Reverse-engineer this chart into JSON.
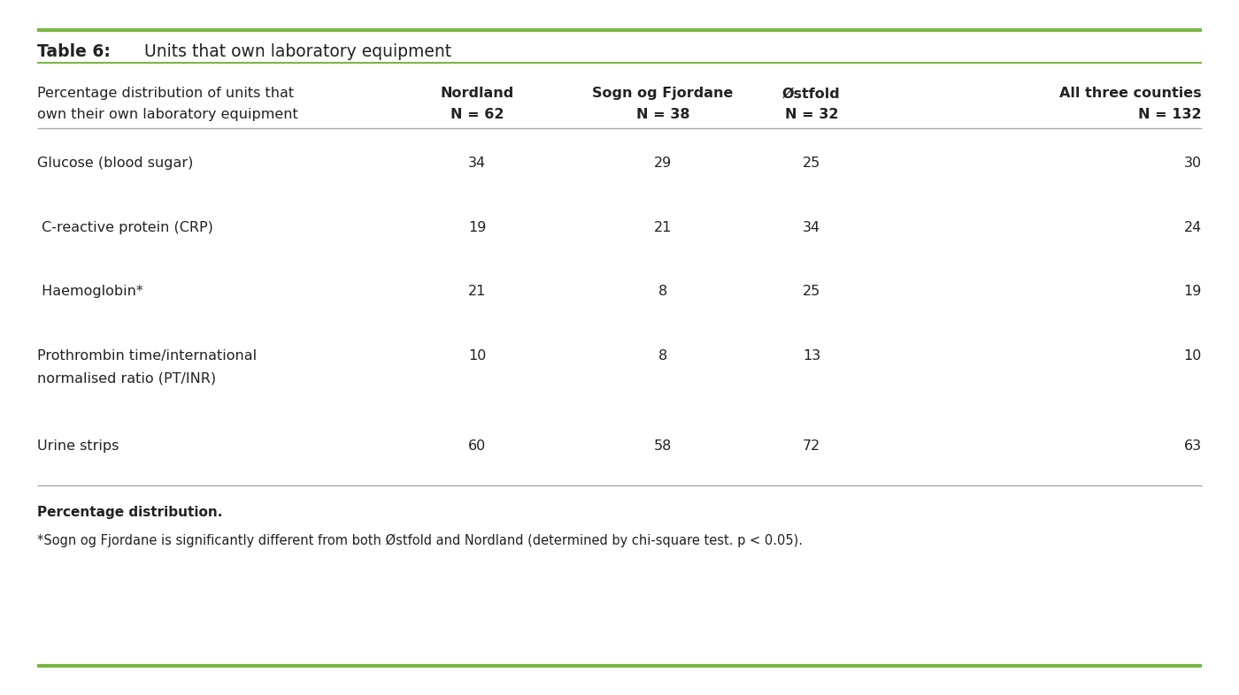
{
  "title_bold": "Table 6:",
  "title_rest": " Units that own laboratory equipment",
  "background_color": "#ffffff",
  "accent_color": "#7ab648",
  "col0_header_line1": "Percentage distribution of units that",
  "col0_header_line2": "own their own laboratory equipment",
  "col1_header_line1": "Nordland",
  "col1_header_line2": "N = 62",
  "col2_header_line1": "Sogn og Fjordane",
  "col2_header_line2": "N = 38",
  "col3_header_line1": "Østfold",
  "col3_header_line2": "N = 32",
  "col4_header_line1": "All three counties",
  "col4_header_line2": "N = 132",
  "rows": [
    {
      "label_line1": "Glucose (blood sugar)",
      "label_line2": "",
      "col1": "34",
      "col2": "29",
      "col3": "25",
      "col4": "30"
    },
    {
      "label_line1": " C-reactive protein (CRP)",
      "label_line2": "",
      "col1": "19",
      "col2": "21",
      "col3": "34",
      "col4": "24"
    },
    {
      "label_line1": " Haemoglobin*",
      "label_line2": "",
      "col1": "21",
      "col2": "8",
      "col3": "25",
      "col4": "19"
    },
    {
      "label_line1": "Prothrombin time/international",
      "label_line2": "normalised ratio (PT/INR)",
      "col1": "10",
      "col2": "8",
      "col3": "13",
      "col4": "10"
    },
    {
      "label_line1": "Urine strips",
      "label_line2": "",
      "col1": "60",
      "col2": "58",
      "col3": "72",
      "col4": "63"
    }
  ],
  "footnote1": "Percentage distribution.",
  "footnote2": "*Sogn og Fjordane is significantly different from both Østfold and Nordland (determined by chi-square test. p < 0.05).",
  "text_color": "#222222",
  "header_fontsize": 11.5,
  "data_fontsize": 11.5,
  "footnote_fontsize": 10.5,
  "title_fontsize": 13.5
}
